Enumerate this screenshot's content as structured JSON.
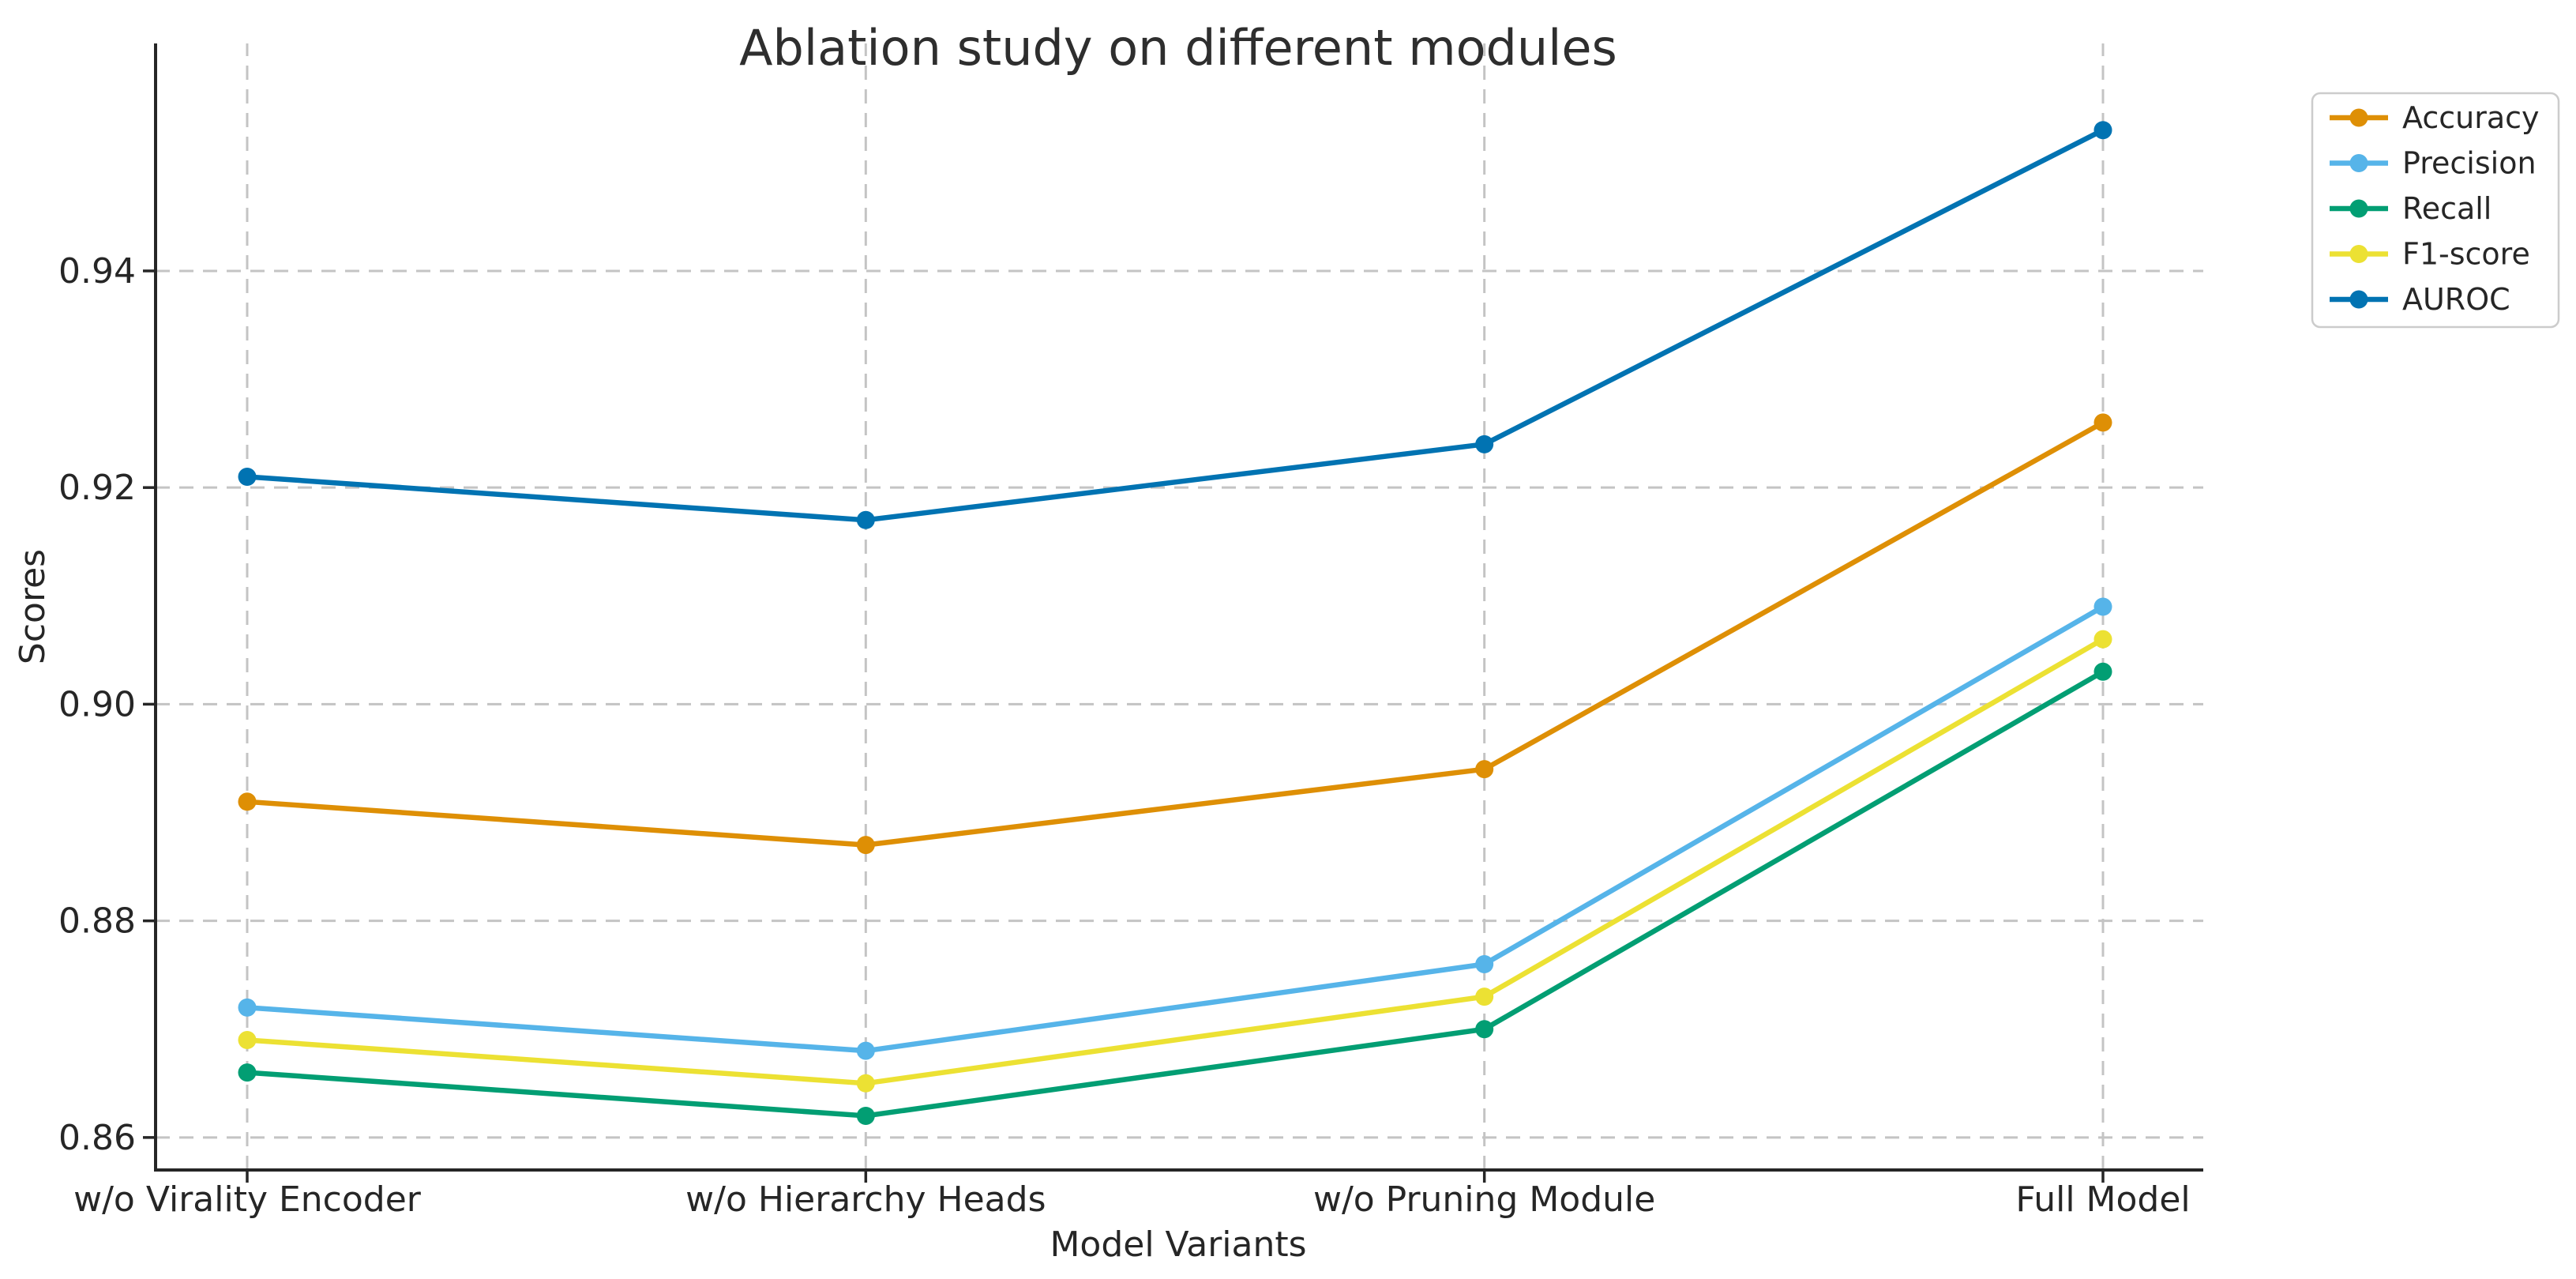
{
  "style": {
    "background": "#ffffff",
    "text_color": "#262626",
    "title_color": "#2e2e2e",
    "grid_color": "#c4c4c4",
    "spine_color": "#262626",
    "legend_border_color": "#cccccc",
    "legend_background": "#ffffff"
  },
  "chart_data": {
    "type": "line",
    "title": "Ablation study on different modules",
    "xlabel": "Model Variants",
    "ylabel": "Scores",
    "categories": [
      "w/o Virality Encoder",
      "w/o Hierarchy Heads",
      "w/o Pruning Module",
      "Full Model"
    ],
    "series": [
      {
        "name": "Accuracy",
        "color": "#DE8F05",
        "values": [
          0.891,
          0.887,
          0.894,
          0.926
        ]
      },
      {
        "name": "Precision",
        "color": "#56B4E9",
        "values": [
          0.872,
          0.868,
          0.876,
          0.909
        ]
      },
      {
        "name": "Recall",
        "color": "#029E73",
        "values": [
          0.866,
          0.862,
          0.87,
          0.903
        ]
      },
      {
        "name": "F1-score",
        "color": "#ECE133",
        "values": [
          0.869,
          0.865,
          0.873,
          0.906
        ]
      },
      {
        "name": "AUROC",
        "color": "#0173B2",
        "values": [
          0.921,
          0.917,
          0.924,
          0.953
        ]
      }
    ],
    "y_ticks": [
      0.86,
      0.88,
      0.9,
      0.92,
      0.94
    ],
    "y_tick_labels": [
      "0.86",
      "0.88",
      "0.90",
      "0.92",
      "0.94"
    ],
    "ylim": [
      0.857,
      0.961
    ],
    "grid": true,
    "grid_style": "dashed",
    "marker": "circle",
    "legend_position": "outside-upper-right",
    "legend_entries": [
      "Accuracy",
      "Precision",
      "Recall",
      "F1-score",
      "AUROC"
    ]
  }
}
